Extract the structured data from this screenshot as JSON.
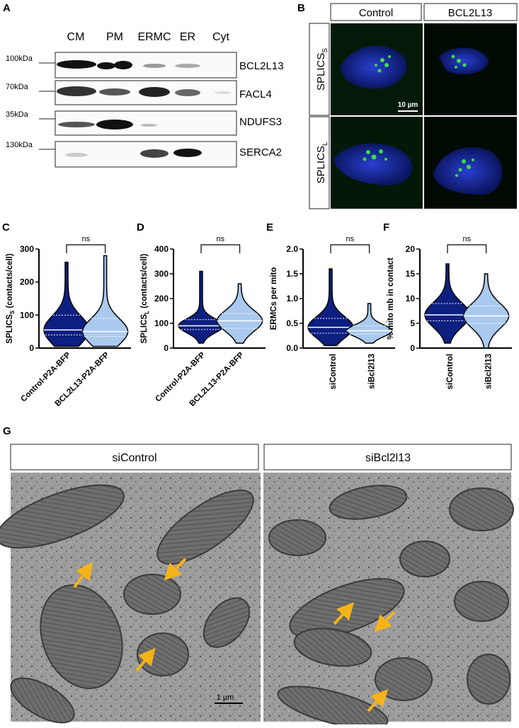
{
  "panel_a": {
    "letter": "A",
    "lanes": [
      "CM",
      "PM",
      "ERMC",
      "ER",
      "Cyt"
    ],
    "markers": [
      "100kDa",
      "70kDa",
      "35kDa",
      "130kDa"
    ],
    "proteins": [
      "BCL2L13",
      "FACL4",
      "NDUFS3",
      "SERCA2"
    ]
  },
  "panel_b": {
    "letter": "B",
    "columns": [
      "Control",
      "BCL2L13"
    ],
    "rows": [
      {
        "main": "SPLICS",
        "sub": "S"
      },
      {
        "main": "SPLICS",
        "sub": "L"
      }
    ],
    "scale_bar": "10 µm"
  },
  "violins": [
    {
      "letter": "C",
      "y_label": {
        "main": "SPLICS",
        "sub": "S",
        "rest": " (contacts/cell)"
      },
      "ylim": [
        0,
        300
      ],
      "yticks": [
        0,
        100,
        200,
        300
      ],
      "significance": "ns",
      "categories": [
        "Control-P2A-BFP",
        "BCL2L13-P2A-BFP"
      ],
      "colors": [
        "#0d1f80",
        "#a9c9ef"
      ],
      "groups": [
        {
          "min": 5,
          "q1": 40,
          "median": 55,
          "q3": 100,
          "max": 260
        },
        {
          "min": 5,
          "q1": 35,
          "median": 50,
          "q3": 90,
          "max": 280
        }
      ]
    },
    {
      "letter": "D",
      "y_label": {
        "main": "SPLICS",
        "sub": "L",
        "rest": " (contacts/cell)"
      },
      "ylim": [
        0,
        400
      ],
      "yticks": [
        0,
        100,
        200,
        300,
        400
      ],
      "significance": "ns",
      "categories": [
        "Control-P2A-BFP",
        "BCL2L13-P2A-BFP"
      ],
      "colors": [
        "#0d1f80",
        "#a9c9ef"
      ],
      "groups": [
        {
          "min": 20,
          "q1": 75,
          "median": 90,
          "q3": 115,
          "max": 310
        },
        {
          "min": 20,
          "q1": 80,
          "median": 110,
          "q3": 140,
          "max": 260
        }
      ]
    },
    {
      "letter": "E",
      "y_label": {
        "main": "ERMCs per mito",
        "sub": "",
        "rest": ""
      },
      "ylim": [
        0,
        2
      ],
      "yticks": [
        {
          "value": 0,
          "label": "0.0"
        },
        {
          "value": 0.5,
          "label": "0.5"
        },
        {
          "value": 1,
          "label": "1.0"
        },
        {
          "value": 1.5,
          "label": "1.5"
        },
        {
          "value": 2,
          "label": "2.0"
        }
      ],
      "significance": "ns",
      "categories": [
        "siControl",
        "siBcl2l13"
      ],
      "colors": [
        "#0d1f80",
        "#a9c9ef"
      ],
      "groups": [
        {
          "min": 0.05,
          "q1": 0.3,
          "median": 0.42,
          "q3": 0.6,
          "max": 1.6
        },
        {
          "min": 0.1,
          "q1": 0.28,
          "median": 0.35,
          "q3": 0.45,
          "max": 0.9
        }
      ]
    },
    {
      "letter": "F",
      "y_label": {
        "main": "% mito mb in contact",
        "sub": "",
        "rest": ""
      },
      "ylim": [
        0,
        20
      ],
      "yticks": [
        0,
        5,
        10,
        15,
        20
      ],
      "significance": "ns",
      "categories": [
        "siControl",
        "siBcl2l13"
      ],
      "colors": [
        "#0d1f80",
        "#a9c9ef"
      ],
      "groups": [
        {
          "min": 1,
          "q1": 5.5,
          "median": 6.7,
          "q3": 9,
          "max": 17
        },
        {
          "min": 0,
          "q1": 5,
          "median": 6.5,
          "q3": 8.5,
          "max": 15
        }
      ]
    }
  ],
  "panel_g": {
    "letter": "G",
    "columns": [
      "siControl",
      "siBcl2l13"
    ],
    "scale_bar": "1 µm"
  }
}
